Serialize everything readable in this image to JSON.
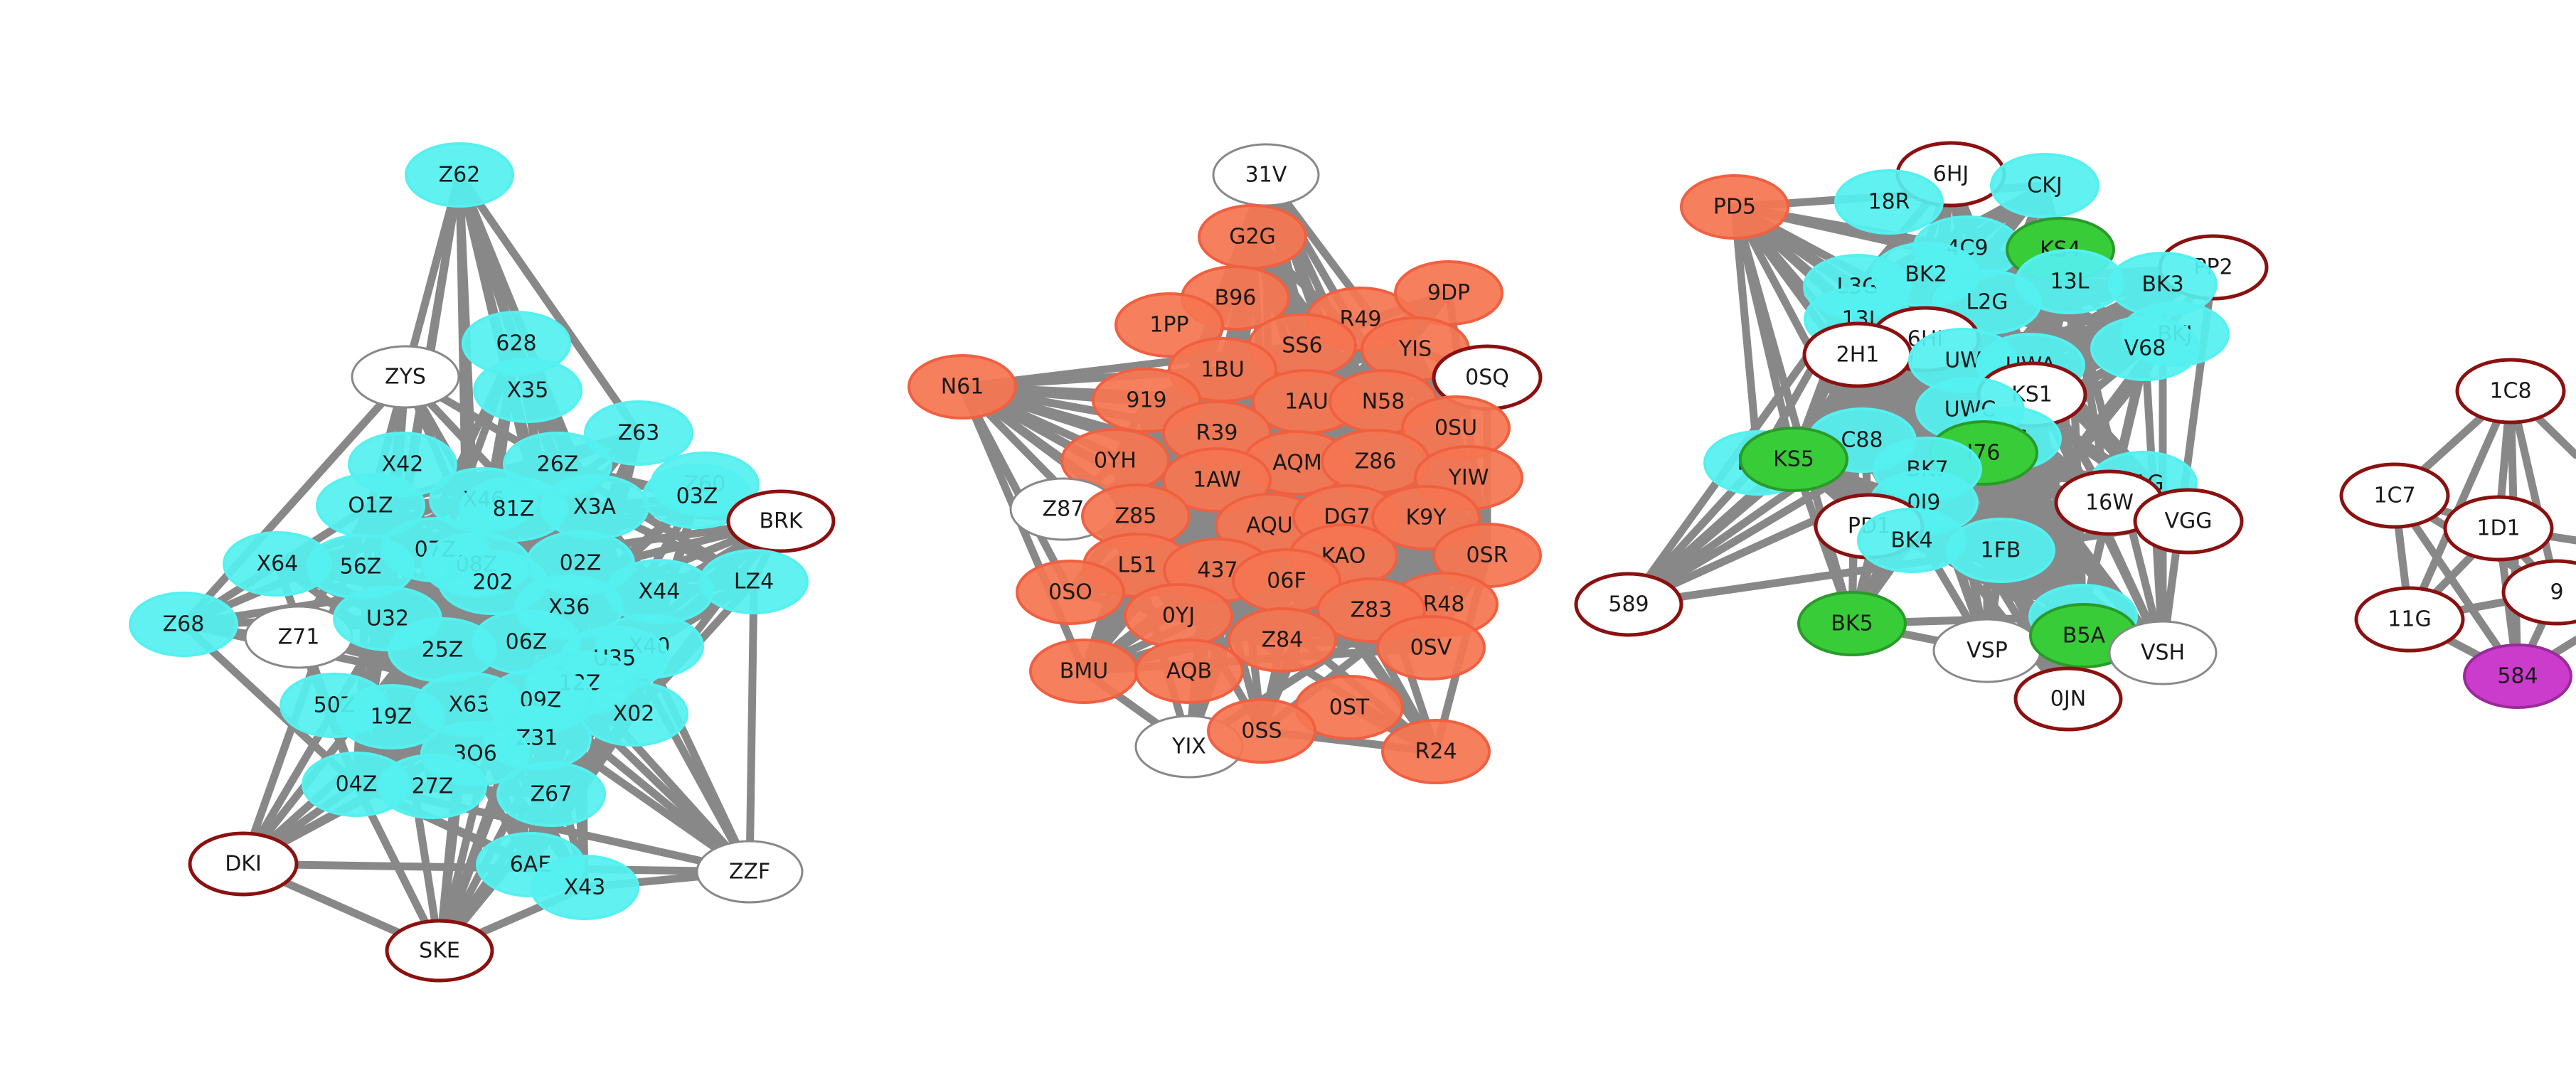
{
  "palette": {
    "cyan": "#55f0f0",
    "orange": "#f57552",
    "green": "#38cc38",
    "magenta": "#cc3ccc",
    "white": "#ffffff",
    "edge": "#888888",
    "ring_dark": "#8b1010",
    "ring_gray": "#888888"
  },
  "clusters": [
    {
      "id": "cyan-cluster",
      "nodes": [
        {
          "label": "Z62",
          "style": "cyan"
        },
        {
          "label": "ZYS",
          "style": "white"
        },
        {
          "label": "628",
          "style": "cyan"
        },
        {
          "label": "X35",
          "style": "cyan"
        },
        {
          "label": "Z63",
          "style": "cyan"
        },
        {
          "label": "X42",
          "style": "cyan"
        },
        {
          "label": "26Z",
          "style": "cyan"
        },
        {
          "label": "Z60",
          "style": "cyan"
        },
        {
          "label": "03Z",
          "style": "cyan"
        },
        {
          "label": "BRK",
          "style": "ring"
        },
        {
          "label": "O1Z",
          "style": "cyan"
        },
        {
          "label": "X46",
          "style": "cyan"
        },
        {
          "label": "81Z",
          "style": "cyan"
        },
        {
          "label": "X3A",
          "style": "cyan"
        },
        {
          "label": "07Z",
          "style": "cyan"
        },
        {
          "label": "X64",
          "style": "cyan"
        },
        {
          "label": "56Z",
          "style": "cyan"
        },
        {
          "label": "08Z",
          "style": "cyan"
        },
        {
          "label": "02Z",
          "style": "cyan"
        },
        {
          "label": "LZ4",
          "style": "cyan"
        },
        {
          "label": "X44",
          "style": "cyan"
        },
        {
          "label": "202",
          "style": "cyan"
        },
        {
          "label": "Z68",
          "style": "cyan"
        },
        {
          "label": "Z71",
          "style": "white"
        },
        {
          "label": "U32",
          "style": "cyan"
        },
        {
          "label": "X36",
          "style": "cyan"
        },
        {
          "label": "06Z",
          "style": "cyan"
        },
        {
          "label": "25Z",
          "style": "cyan"
        },
        {
          "label": "X40",
          "style": "cyan"
        },
        {
          "label": "U35",
          "style": "cyan"
        },
        {
          "label": "12Z",
          "style": "cyan"
        },
        {
          "label": "50Z",
          "style": "cyan"
        },
        {
          "label": "19Z",
          "style": "cyan"
        },
        {
          "label": "X63",
          "style": "cyan"
        },
        {
          "label": "09Z",
          "style": "cyan"
        },
        {
          "label": "X02",
          "style": "cyan"
        },
        {
          "label": "Z31",
          "style": "cyan"
        },
        {
          "label": "3O6",
          "style": "cyan"
        },
        {
          "label": "04Z",
          "style": "cyan"
        },
        {
          "label": "27Z",
          "style": "cyan"
        },
        {
          "label": "Z67",
          "style": "cyan"
        },
        {
          "label": "DKI",
          "style": "ring"
        },
        {
          "label": "6AE",
          "style": "cyan"
        },
        {
          "label": "X43",
          "style": "cyan"
        },
        {
          "label": "ZZF",
          "style": "white"
        },
        {
          "label": "SKE",
          "style": "ring"
        }
      ]
    },
    {
      "id": "orange-cluster",
      "nodes": [
        {
          "label": "31V",
          "style": "white"
        },
        {
          "label": "G2G",
          "style": "orange"
        },
        {
          "label": "B96",
          "style": "orange"
        },
        {
          "label": "1PP",
          "style": "orange"
        },
        {
          "label": "R49",
          "style": "orange"
        },
        {
          "label": "9DP",
          "style": "orange"
        },
        {
          "label": "SS6",
          "style": "orange"
        },
        {
          "label": "YIS",
          "style": "orange"
        },
        {
          "label": "0SQ",
          "style": "ring"
        },
        {
          "label": "N61",
          "style": "orange"
        },
        {
          "label": "1BU",
          "style": "orange"
        },
        {
          "label": "919",
          "style": "orange"
        },
        {
          "label": "1AU",
          "style": "orange"
        },
        {
          "label": "N58",
          "style": "orange"
        },
        {
          "label": "0SU",
          "style": "orange"
        },
        {
          "label": "R39",
          "style": "orange"
        },
        {
          "label": "0YH",
          "style": "orange"
        },
        {
          "label": "AQM",
          "style": "orange"
        },
        {
          "label": "Z86",
          "style": "orange"
        },
        {
          "label": "YIW",
          "style": "orange"
        },
        {
          "label": "1AW",
          "style": "orange"
        },
        {
          "label": "Z87",
          "style": "white"
        },
        {
          "label": "Z85",
          "style": "orange"
        },
        {
          "label": "AQU",
          "style": "orange"
        },
        {
          "label": "DG7",
          "style": "orange"
        },
        {
          "label": "K9Y",
          "style": "orange"
        },
        {
          "label": "0SR",
          "style": "orange"
        },
        {
          "label": "KAO",
          "style": "orange"
        },
        {
          "label": "L51",
          "style": "orange"
        },
        {
          "label": "437",
          "style": "orange"
        },
        {
          "label": "06F",
          "style": "orange"
        },
        {
          "label": "0SO",
          "style": "orange"
        },
        {
          "label": "R48",
          "style": "orange"
        },
        {
          "label": "0YJ",
          "style": "orange"
        },
        {
          "label": "Z83",
          "style": "orange"
        },
        {
          "label": "Z84",
          "style": "orange"
        },
        {
          "label": "0SV",
          "style": "orange"
        },
        {
          "label": "BMU",
          "style": "orange"
        },
        {
          "label": "AQB",
          "style": "orange"
        },
        {
          "label": "0ST",
          "style": "orange"
        },
        {
          "label": "YIX",
          "style": "white"
        },
        {
          "label": "0SS",
          "style": "orange"
        },
        {
          "label": "R24",
          "style": "orange"
        }
      ]
    },
    {
      "id": "mixed-cluster",
      "nodes": [
        {
          "label": "PD5",
          "style": "orange"
        },
        {
          "label": "6HJ",
          "style": "ring"
        },
        {
          "label": "CKJ",
          "style": "cyan"
        },
        {
          "label": "18R",
          "style": "cyan"
        },
        {
          "label": "4C9",
          "style": "cyan"
        },
        {
          "label": "KS4",
          "style": "green"
        },
        {
          "label": "L3G",
          "style": "cyan"
        },
        {
          "label": "BK2",
          "style": "cyan"
        },
        {
          "label": "PP2",
          "style": "ring"
        },
        {
          "label": "13L",
          "style": "cyan"
        },
        {
          "label": "BK3",
          "style": "cyan"
        },
        {
          "label": "L2G",
          "style": "cyan"
        },
        {
          "label": "13J",
          "style": "cyan"
        },
        {
          "label": "6HI",
          "style": "ring"
        },
        {
          "label": "BKJ",
          "style": "cyan"
        },
        {
          "label": "2H1",
          "style": "ring"
        },
        {
          "label": "UW",
          "style": "cyan"
        },
        {
          "label": "UWA",
          "style": "cyan"
        },
        {
          "label": "V68",
          "style": "cyan"
        },
        {
          "label": "KS1",
          "style": "ring"
        },
        {
          "label": "UWC",
          "style": "cyan"
        },
        {
          "label": "BK6",
          "style": "cyan"
        },
        {
          "label": "BK1",
          "style": "cyan"
        },
        {
          "label": "C88",
          "style": "cyan"
        },
        {
          "label": "KS5",
          "style": "green"
        },
        {
          "label": "I76",
          "style": "green"
        },
        {
          "label": "BK7",
          "style": "cyan"
        },
        {
          "label": "L1G",
          "style": "cyan"
        },
        {
          "label": "16W",
          "style": "ring"
        },
        {
          "label": "VGG",
          "style": "ring"
        },
        {
          "label": "0I9",
          "style": "cyan"
        },
        {
          "label": "PD1",
          "style": "ring"
        },
        {
          "label": "BK4",
          "style": "cyan"
        },
        {
          "label": "1FB",
          "style": "cyan"
        },
        {
          "label": "589",
          "style": "ring"
        },
        {
          "label": "DXR",
          "style": "cyan"
        },
        {
          "label": "BK5",
          "style": "green"
        },
        {
          "label": "VSP",
          "style": "white"
        },
        {
          "label": "B5A",
          "style": "green"
        },
        {
          "label": "VSH",
          "style": "white"
        },
        {
          "label": "0JN",
          "style": "ring"
        }
      ]
    },
    {
      "id": "right-cluster",
      "nodes": [
        {
          "label": "1C8",
          "style": "ring"
        },
        {
          "label": "1C7",
          "style": "ring"
        },
        {
          "label": "1D1",
          "style": "ring"
        },
        {
          "label": "9",
          "style": "ring"
        },
        {
          "label": "11G",
          "style": "ring"
        },
        {
          "label": "584",
          "style": "magenta"
        }
      ]
    }
  ]
}
